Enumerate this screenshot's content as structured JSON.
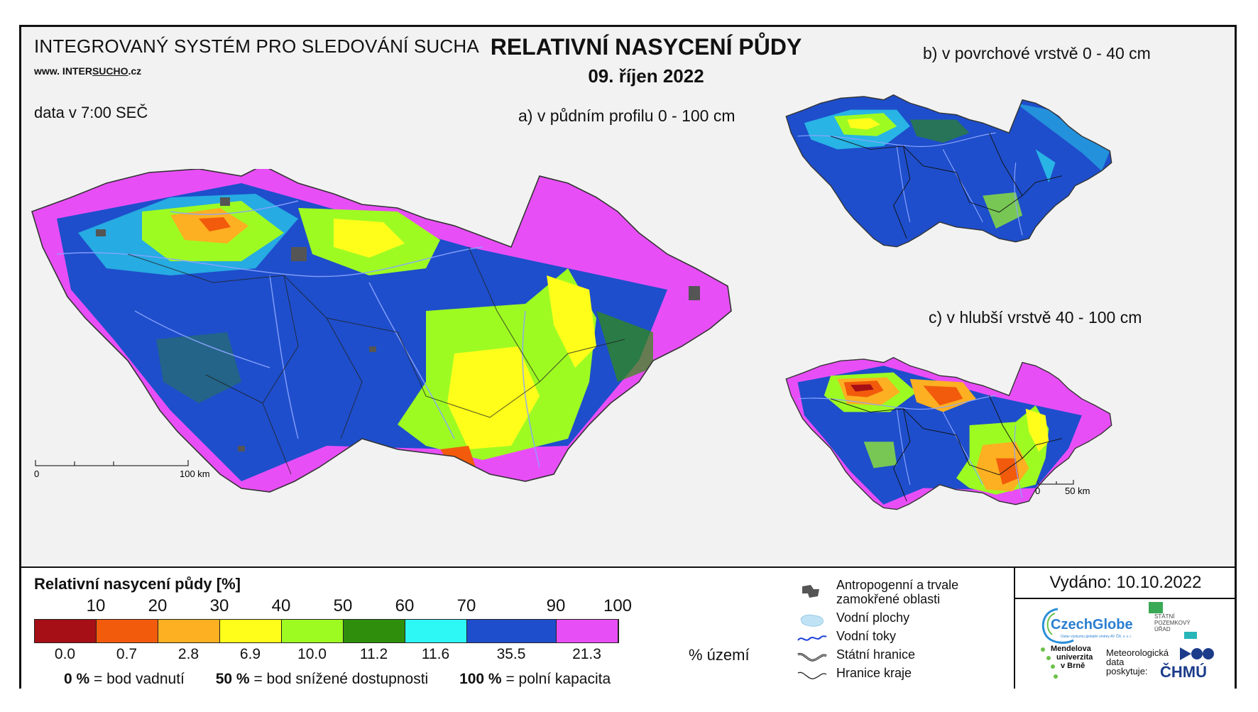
{
  "header": {
    "system": "INTEGROVANÝ SYSTÉM PRO SLEDOVÁNÍ SUCHA",
    "web_prefix": "www. INTER",
    "web_underlined": "SUCHO",
    "web_suffix": ".cz",
    "time": "data v 7:00 SEČ",
    "title": "RELATIVNÍ NASYCENÍ PŮDY",
    "date": "09. říjen 2022"
  },
  "maps": {
    "a": {
      "caption": "a) v půdním profilu 0 - 100 cm",
      "scale_start": "0",
      "scale_end": "100 km"
    },
    "b": {
      "caption": "b) v povrchové vrstvě 0 - 40 cm"
    },
    "c": {
      "caption": "c) v hlubší vrstvě 40 - 100 cm",
      "scale_start": "0",
      "scale_end": "50 km"
    }
  },
  "legend": {
    "title": "Relativní nasycení půdy [%]",
    "ticks": [
      "10",
      "20",
      "30",
      "40",
      "50",
      "60",
      "70",
      "90",
      "100"
    ],
    "classes": [
      {
        "color": "#a50f15",
        "share": "0.0"
      },
      {
        "color": "#f25a0c",
        "share": "0.7"
      },
      {
        "color": "#fdb021",
        "share": "2.8"
      },
      {
        "color": "#fefe1a",
        "share": "6.9"
      },
      {
        "color": "#9efb22",
        "share": "10.0"
      },
      {
        "color": "#2f8e0c",
        "share": "11.2"
      },
      {
        "color": "#2ef8f6",
        "share": "11.6"
      },
      {
        "color": "#1e4ecb",
        "share": "35.5"
      },
      {
        "color": "#e84ef6",
        "share": "21.3"
      }
    ],
    "share_unit": "% území",
    "notes": [
      {
        "value": "0 %",
        "label": "= bod vadnutí"
      },
      {
        "value": "50 %",
        "label": "= bod snížené dostupnosti"
      },
      {
        "value": "100 %",
        "label": "= polní kapacita"
      }
    ]
  },
  "symbols": {
    "anthropogenic_1": "Antropogenní a trvale",
    "anthropogenic_2": "zamokřené oblasti",
    "water_areas": "Vodní plochy",
    "rivers": "Vodní toky",
    "state_border": "Státní hranice",
    "region_border": "Hranice kraje"
  },
  "issued": "Vydáno: 10.10.2022",
  "logos": {
    "czechglobe": "CzechGlobe",
    "czechglobe_sub": "Ústav výzkumu globální změny AV ČR, v. v. i.",
    "spu_1": "STÁTNÍ",
    "spu_2": "POZEMKOVÝ",
    "spu_3": "ÚŘAD",
    "mendel_1": "Mendelova",
    "mendel_2": "univerzita",
    "mendel_3": "v Brně",
    "meteo_1": "Meteorologická",
    "meteo_2": "data",
    "meteo_3": "poskytuje:",
    "chmu": "ČHMÚ"
  },
  "colors": {
    "magenta": "#e84ef6",
    "blue": "#1e4ecb",
    "cyan": "#2ef8f6",
    "dark_green": "#2f8e0c",
    "light_green": "#9efb22",
    "yellow": "#fefe1a",
    "orange": "#fdb021",
    "red_orange": "#f25a0c",
    "dark_red": "#a50f15"
  }
}
